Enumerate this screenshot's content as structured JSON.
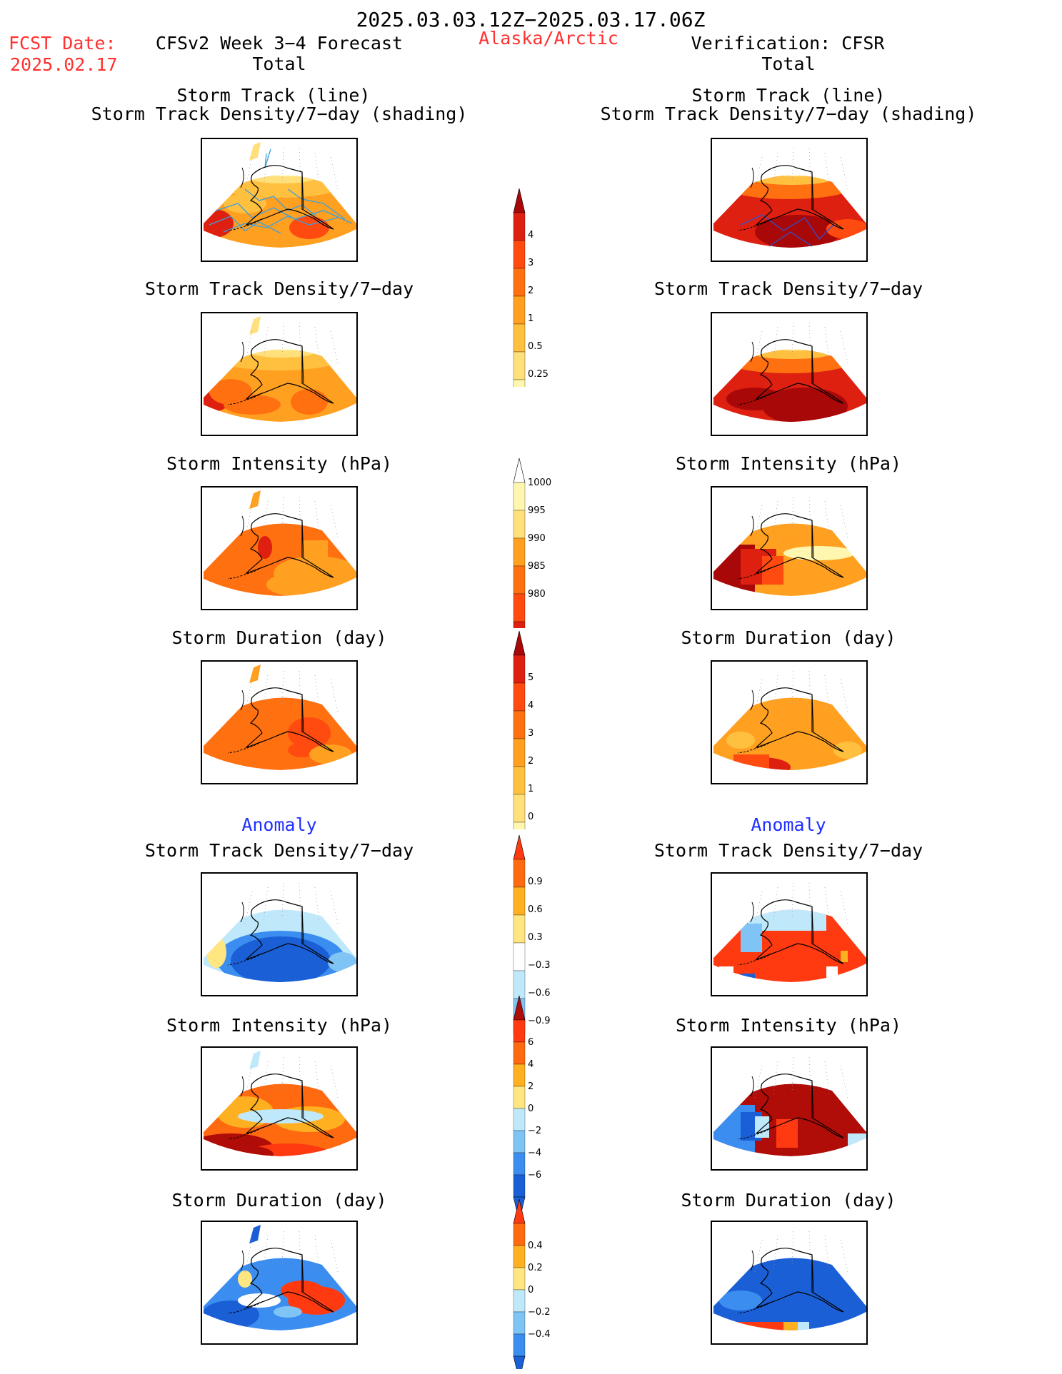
{
  "header": {
    "period": "2025.03.03.12Z−2025.03.17.06Z",
    "fcst_label": "FCST Date:",
    "fcst_date": "2025.02.17",
    "left_title": "CFSv2 Week 3−4 Forecast",
    "region": "Alaska/Arctic",
    "right_title": "Verification: CFSR"
  },
  "sections": {
    "total_left": "Total",
    "total_right": "Total",
    "anomaly_left": "Anomaly",
    "anomaly_right": "Anomaly"
  },
  "panel_titles": {
    "track_line": "Storm Track (line)",
    "track_shading": "Storm Track Density/7−day (shading)",
    "density": "Storm Track Density/7−day",
    "intensity": "Storm Intensity (hPa)",
    "duration": "Storm Duration (day)"
  },
  "colorbars": {
    "density_total": [
      "4",
      "3",
      "2",
      "1",
      "0.5",
      "0.25"
    ],
    "intensity_total": [
      "1000",
      "995",
      "990",
      "985",
      "980"
    ],
    "duration_total": [
      "5",
      "4",
      "3",
      "2",
      "1",
      "0"
    ],
    "density_anom": [
      "0.9",
      "0.6",
      "0.3",
      "−0.3",
      "−0.6",
      "−0.9"
    ],
    "intensity_anom": [
      "6",
      "4",
      "2",
      "0",
      "−2",
      "−4",
      "−6"
    ],
    "duration_anom": [
      "0.4",
      "0.2",
      "0",
      "−0.2",
      "−0.4"
    ]
  },
  "colors": {
    "title_red": "#ff3030",
    "section_blue": "#2030ff",
    "warm_scale": [
      "#fff6b0",
      "#ffe07a",
      "#ffc040",
      "#ffa020",
      "#ff7010",
      "#ff4a10",
      "#dd2010",
      "#a80808"
    ],
    "anom_scale": [
      "#1a5fd6",
      "#3b8ef0",
      "#7fc4f5",
      "#bfe9fb",
      "#ffffff",
      "#ffe680",
      "#ffb020",
      "#ff6a10",
      "#ff3a10",
      "#b00c08"
    ],
    "track_line": "#3aa0e0",
    "track_line_verif": "#3050d0"
  },
  "chart_data": [
    {
      "type": "heatmap",
      "column": "CFSv2 Week 3−4 Forecast",
      "section": "Total",
      "title": "Storm Track (line) / Storm Track Density/7−day (shading)",
      "dominant_value": "1 to 2, up to 3 in southwest and Gulf of Alaska"
    },
    {
      "type": "heatmap",
      "column": "CFSv2 Week 3−4 Forecast",
      "section": "Total",
      "title": "Storm Track Density/7−day",
      "dominant_value": "1 to 2, up to 3"
    },
    {
      "type": "heatmap",
      "column": "CFSv2 Week 3−4 Forecast",
      "section": "Total",
      "title": "Storm Intensity (hPa)",
      "dominant_value": "985 to 995"
    },
    {
      "type": "heatmap",
      "column": "CFSv2 Week 3−4 Forecast",
      "section": "Total",
      "title": "Storm Duration (day)",
      "dominant_value": "2 to 3, up to 4"
    },
    {
      "type": "heatmap",
      "column": "CFSv2 Week 3−4 Forecast",
      "section": "Anomaly",
      "title": "Storm Track Density/7−day",
      "dominant_value": "−0.6 to −0.9"
    },
    {
      "type": "heatmap",
      "column": "CFSv2 Week 3−4 Forecast",
      "section": "Anomaly",
      "title": "Storm Intensity (hPa)",
      "dominant_value": "2 to 6"
    },
    {
      "type": "heatmap",
      "column": "CFSv2 Week 3−4 Forecast",
      "section": "Anomaly",
      "title": "Storm Duration (day)",
      "dominant_value": "−0.2 to 0.4"
    },
    {
      "type": "heatmap",
      "column": "Verification: CFSR",
      "section": "Total",
      "title": "Storm Track (line) / Storm Track Density/7−day (shading)",
      "dominant_value": "2 to 4"
    },
    {
      "type": "heatmap",
      "column": "Verification: CFSR",
      "section": "Total",
      "title": "Storm Track Density/7−day",
      "dominant_value": "2 to 4"
    },
    {
      "type": "heatmap",
      "column": "Verification: CFSR",
      "section": "Total",
      "title": "Storm Intensity (hPa)",
      "dominant_value": "980 to 995"
    },
    {
      "type": "heatmap",
      "column": "Verification: CFSR",
      "section": "Total",
      "title": "Storm Duration (day)",
      "dominant_value": "1 to 3"
    },
    {
      "type": "heatmap",
      "column": "Verification: CFSR",
      "section": "Anomaly",
      "title": "Storm Track Density/7−day",
      "dominant_value": "0.6 to 0.9"
    },
    {
      "type": "heatmap",
      "column": "Verification: CFSR",
      "section": "Anomaly",
      "title": "Storm Intensity (hPa)",
      "dominant_value": "−6 to 6"
    },
    {
      "type": "heatmap",
      "column": "Verification: CFSR",
      "section": "Anomaly",
      "title": "Storm Duration (day)",
      "dominant_value": "−0.4"
    }
  ]
}
